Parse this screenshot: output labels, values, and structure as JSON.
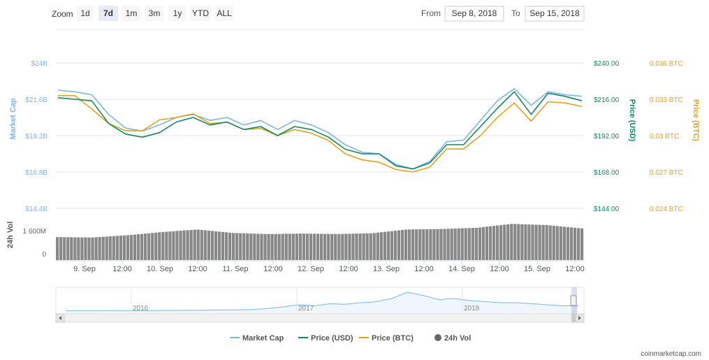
{
  "toolbar": {
    "zoom_label": "Zoom",
    "zoom_buttons": [
      "1d",
      "7d",
      "1m",
      "3m",
      "1y",
      "YTD",
      "ALL"
    ],
    "active_zoom": "7d",
    "from_label": "From",
    "from_value": "Sep 8, 2018",
    "to_label": "To",
    "to_value": "Sep 15, 2018"
  },
  "colors": {
    "market_cap": "#7cb5ec",
    "price_usd": "#0e8a5f",
    "price_btc": "#e3a21a",
    "volume": "#888888"
  },
  "chart_data": {
    "type": "line",
    "x_ticks": [
      "9. Sep",
      "12:00",
      "10. Sep",
      "12:00",
      "11. Sep",
      "12:00",
      "12. Sep",
      "12:00",
      "13. Sep",
      "12:00",
      "14. Sep",
      "12:00",
      "15. Sep",
      "12:00"
    ],
    "y_axes": {
      "market_cap": {
        "title": "Market Cap",
        "ticks": [
          "$24B",
          "$21.6B",
          "$19.2B",
          "$16.8B",
          "$14.4B"
        ]
      },
      "price_usd": {
        "title": "Price (USD)",
        "ticks": [
          "$240.00",
          "$216.00",
          "$192.00",
          "$168.00",
          "$144.00"
        ],
        "ylim": [
          144,
          240
        ]
      },
      "price_btc": {
        "title": "Price (BTC)",
        "ticks": [
          "0.036 BTC",
          "0.033 BTC",
          "0.03 BTC",
          "0.027 BTC",
          "0.024 BTC"
        ]
      },
      "volume": {
        "title": "24h Vol",
        "ticks": [
          "1 600M",
          "0"
        ]
      }
    },
    "series": [
      {
        "name": "Price (USD)",
        "x": [
          "9/8 00:00",
          "9/8 06:00",
          "9/8 12:00",
          "9/8 18:00",
          "9/9 00:00",
          "9/9 06:00",
          "9/9 12:00",
          "9/9 18:00",
          "9/10 00:00",
          "9/10 06:00",
          "9/10 12:00",
          "9/10 18:00",
          "9/11 00:00",
          "9/11 06:00",
          "9/11 12:00",
          "9/11 18:00",
          "9/12 00:00",
          "9/12 06:00",
          "9/12 12:00",
          "9/12 18:00",
          "9/13 00:00",
          "9/13 06:00",
          "9/13 12:00",
          "9/13 18:00",
          "9/14 00:00",
          "9/14 06:00",
          "9/14 12:00",
          "9/14 18:00",
          "9/15 00:00",
          "9/15 06:00",
          "9/15 12:00",
          "9/15 18:00"
        ],
        "values": [
          217,
          216,
          215,
          200,
          193,
          191,
          194,
          201,
          204,
          199,
          201,
          196,
          198,
          192,
          198,
          196,
          191,
          183,
          180,
          180,
          172,
          170,
          174,
          186,
          186,
          198,
          210,
          221,
          206,
          220,
          218,
          215
        ]
      },
      {
        "name": "Price (BTC)",
        "x": [
          "9/8 00:00",
          "9/8 06:00",
          "9/8 12:00",
          "9/8 18:00",
          "9/9 00:00",
          "9/9 06:00",
          "9/9 12:00",
          "9/9 18:00",
          "9/10 00:00",
          "9/10 06:00",
          "9/10 12:00",
          "9/10 18:00",
          "9/11 00:00",
          "9/11 06:00",
          "9/11 12:00",
          "9/11 18:00",
          "9/12 00:00",
          "9/12 06:00",
          "9/12 12:00",
          "9/12 18:00",
          "9/13 00:00",
          "9/13 06:00",
          "9/13 12:00",
          "9/13 18:00",
          "9/14 00:00",
          "9/14 06:00",
          "9/14 12:00",
          "9/14 18:00",
          "9/15 00:00",
          "9/15 06:00",
          "9/15 12:00",
          "9/15 18:00"
        ],
        "values": [
          0.0333,
          0.0333,
          0.0322,
          0.031,
          0.0304,
          0.0304,
          0.0313,
          0.0315,
          0.0318,
          0.031,
          0.0311,
          0.0305,
          0.0306,
          0.03,
          0.0305,
          0.0302,
          0.0296,
          0.0285,
          0.028,
          0.0278,
          0.0272,
          0.027,
          0.0274,
          0.0289,
          0.0289,
          0.03,
          0.0315,
          0.0327,
          0.0312,
          0.0328,
          0.0327,
          0.0324
        ]
      },
      {
        "name": "Market Cap",
        "x": [
          "9/8 00:00",
          "9/8 06:00",
          "9/8 12:00",
          "9/8 18:00",
          "9/9 00:00",
          "9/9 06:00",
          "9/9 12:00",
          "9/9 18:00",
          "9/10 00:00",
          "9/10 06:00",
          "9/10 12:00",
          "9/10 18:00",
          "9/11 00:00",
          "9/11 06:00",
          "9/11 12:00",
          "9/11 18:00",
          "9/12 00:00",
          "9/12 06:00",
          "9/12 12:00",
          "9/12 18:00",
          "9/13 00:00",
          "9/13 06:00",
          "9/13 12:00",
          "9/13 18:00",
          "9/14 00:00",
          "9/14 06:00",
          "9/14 12:00",
          "9/14 18:00",
          "9/15 00:00",
          "9/15 06:00",
          "9/15 12:00",
          "9/15 18:00"
        ],
        "values_billion_usd": [
          22.2,
          22.1,
          21.9,
          20.6,
          19.7,
          19.5,
          19.9,
          20.4,
          20.6,
          20.2,
          20.4,
          19.9,
          20.2,
          19.6,
          20.2,
          19.9,
          19.4,
          18.6,
          18.1,
          18.0,
          17.3,
          17.0,
          17.5,
          18.8,
          18.9,
          20.2,
          21.5,
          22.3,
          21.2,
          22.1,
          21.9,
          21.8
        ]
      },
      {
        "name": "24h Vol",
        "x": [
          "9/8 00:00",
          "9/8 12:00",
          "9/9 00:00",
          "9/9 12:00",
          "9/10 00:00",
          "9/10 12:00",
          "9/11 00:00",
          "9/11 12:00",
          "9/12 00:00",
          "9/12 12:00",
          "9/13 00:00",
          "9/13 12:00",
          "9/14 00:00",
          "9/14 12:00",
          "9/15 00:00",
          "9/15 12:00"
        ],
        "values_million_usd": [
          1350,
          1330,
          1460,
          1650,
          1800,
          1600,
          1530,
          1560,
          1530,
          1580,
          1800,
          1830,
          1900,
          2130,
          2060,
          1860
        ]
      }
    ],
    "navigator": {
      "x_ticks": [
        "2016",
        "2017",
        "2018"
      ],
      "values": [
        0.4,
        0.4,
        0.4,
        0.5,
        0.5,
        0.5,
        0.6,
        0.6,
        0.7,
        0.8,
        1.0,
        1.2,
        1.5,
        2.5,
        4,
        6,
        5,
        7,
        6.5,
        8,
        9,
        12,
        18,
        15,
        11,
        12,
        10,
        9,
        8,
        8,
        7,
        6,
        5,
        5
      ]
    },
    "legend": [
      "Market Cap",
      "Price (USD)",
      "Price (BTC)",
      "24h Vol"
    ],
    "legend_placement": "bottom-center",
    "grid": true
  },
  "credit": "coinmarketcap.com"
}
